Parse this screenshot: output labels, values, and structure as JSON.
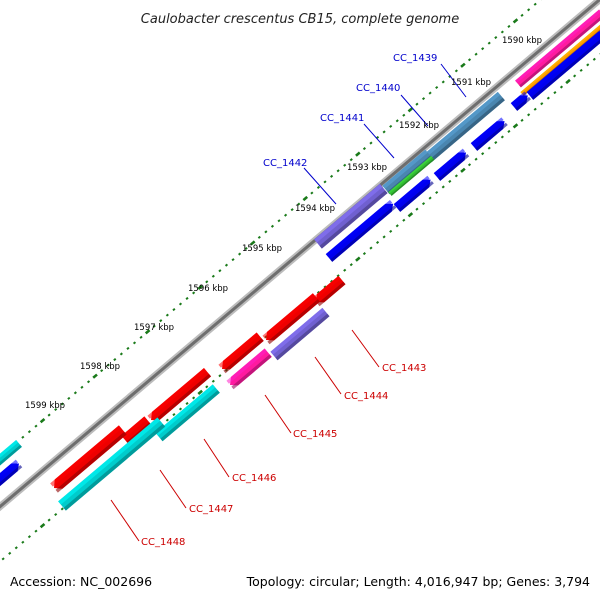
{
  "title": "Caulobacter crescentus CB15, complete genome",
  "footer": {
    "accession": "Accession: NC_002696",
    "summary": "Topology: circular; Length: 4,016,947 bp; Genes: 3,794"
  },
  "ticks": [
    "1590 kbp",
    "1591 kbp",
    "1592 kbp",
    "1593 kbp",
    "1594 kbp",
    "1595 kbp",
    "1596 kbp",
    "1597 kbp",
    "1598 kbp",
    "1599 kbp"
  ],
  "labels_blue": [
    "CC_1439",
    "CC_1440",
    "CC_1441",
    "CC_1442"
  ],
  "labels_red": [
    "CC_1443",
    "CC_1444",
    "CC_1445",
    "CC_1446",
    "CC_1447",
    "CC_1448"
  ],
  "colors": {
    "backbone": "#8a8a8a",
    "ticks": "#1a7a1a",
    "forward_cds": "#0000ee",
    "reverse_cds": "#ee0000",
    "cyan": "#00cccc",
    "steelblue": "#4a86b0",
    "purple": "#7060d0",
    "pink": "#ff1aa0",
    "orange": "#ff9a00",
    "green": "#33bb33",
    "label_blue": "#0000cc",
    "label_red": "#cc0000"
  }
}
